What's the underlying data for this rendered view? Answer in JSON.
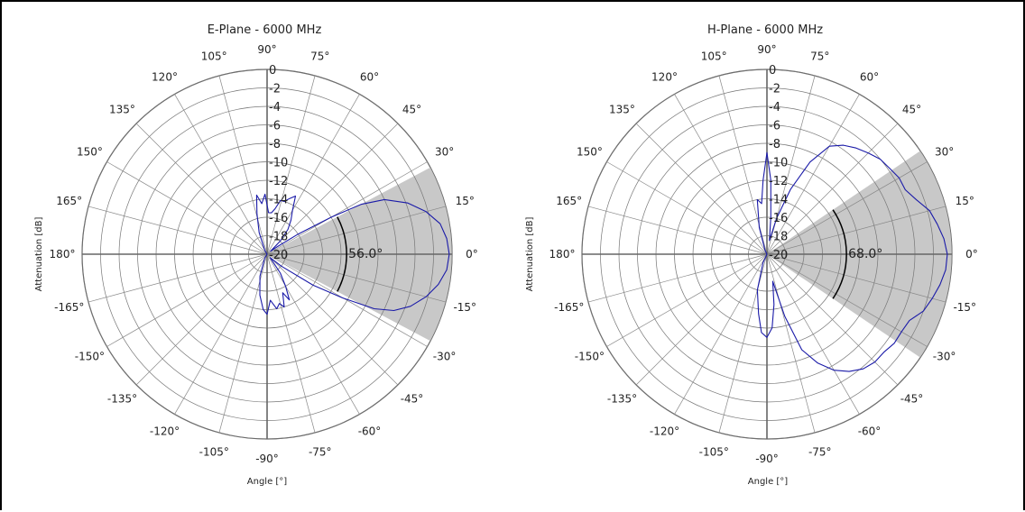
{
  "chart_data": [
    {
      "type": "polar",
      "title": "E-Plane - 6000 MHz",
      "xlabel": "Angle [°]",
      "ylabel": "Attenuation [dB]",
      "angle_ticks": [
        "0°",
        "15°",
        "30°",
        "45°",
        "60°",
        "75°",
        "90°",
        "105°",
        "120°",
        "135°",
        "150°",
        "165°",
        "180°",
        "-165°",
        "-150°",
        "-135°",
        "-120°",
        "-105°",
        "-90°",
        "-75°",
        "-60°",
        "-45°",
        "-30°",
        "-15°"
      ],
      "radial_ticks": [
        "0",
        "-2",
        "-4",
        "-6",
        "-8",
        "-10",
        "-12",
        "-14",
        "-16",
        "-18",
        "-20"
      ],
      "rlim": [
        -20,
        0
      ],
      "grid": true,
      "beamwidth": {
        "label": "56.0°",
        "value_deg": 56.0,
        "color": "#c8c8c8"
      },
      "series": [
        {
          "color": "#1a1aa8",
          "points": [
            [
              0,
              -0.3
            ],
            [
              5,
              -0.5
            ],
            [
              10,
              -1.0
            ],
            [
              15,
              -2.2
            ],
            [
              20,
              -3.8
            ],
            [
              25,
              -6.0
            ],
            [
              28,
              -8.5
            ],
            [
              30,
              -12.0
            ],
            [
              33,
              -16.0
            ],
            [
              36,
              -18.5
            ],
            [
              40,
              -19.5
            ],
            [
              45,
              -18.0
            ],
            [
              50,
              -16.5
            ],
            [
              55,
              -15.5
            ],
            [
              60,
              -14.5
            ],
            [
              64,
              -13.0
            ],
            [
              68,
              -13.5
            ],
            [
              72,
              -14.0
            ],
            [
              76,
              -14.0
            ],
            [
              80,
              -15.0
            ],
            [
              84,
              -15.5
            ],
            [
              88,
              -15.5
            ],
            [
              92,
              -13.5
            ],
            [
              96,
              -14.5
            ],
            [
              100,
              -13.5
            ],
            [
              104,
              -15.5
            ],
            [
              110,
              -17.5
            ],
            [
              120,
              -19.5
            ],
            [
              150,
              -20
            ],
            [
              180,
              -20
            ],
            [
              -150,
              -20
            ],
            [
              -120,
              -19.5
            ],
            [
              -108,
              -17.5
            ],
            [
              -100,
              -15.5
            ],
            [
              -94,
              -14.0
            ],
            [
              -90,
              -13.5
            ],
            [
              -86,
              -15.0
            ],
            [
              -80,
              -14.0
            ],
            [
              -76,
              -14.5
            ],
            [
              -72,
              -14.0
            ],
            [
              -68,
              -15.5
            ],
            [
              -64,
              -14.5
            ],
            [
              -60,
              -16.0
            ],
            [
              -55,
              -17.5
            ],
            [
              -48,
              -19.5
            ],
            [
              -40,
              -18.0
            ],
            [
              -34,
              -14.0
            ],
            [
              -30,
              -10.5
            ],
            [
              -27,
              -7.0
            ],
            [
              -24,
              -5.0
            ],
            [
              -20,
              -3.5
            ],
            [
              -15,
              -2.2
            ],
            [
              -10,
              -1.2
            ],
            [
              -5,
              -0.5
            ],
            [
              0,
              -0.3
            ]
          ]
        }
      ]
    },
    {
      "type": "polar",
      "title": "H-Plane - 6000 MHz",
      "xlabel": "Angle [°]",
      "ylabel": "Attenuation [dB]",
      "angle_ticks": [
        "0°",
        "15°",
        "30°",
        "45°",
        "60°",
        "75°",
        "90°",
        "105°",
        "120°",
        "135°",
        "150°",
        "165°",
        "180°",
        "-165°",
        "-150°",
        "-135°",
        "-120°",
        "-105°",
        "-90°",
        "-75°",
        "-60°",
        "-45°",
        "-30°",
        "-15°"
      ],
      "radial_ticks": [
        "0",
        "-2",
        "-4",
        "-6",
        "-8",
        "-10",
        "-12",
        "-14",
        "-16",
        "-18",
        "-20"
      ],
      "rlim": [
        -20,
        0
      ],
      "grid": true,
      "beamwidth": {
        "label": "68.0°",
        "value_deg": 68.0,
        "color": "#c8c8c8"
      },
      "series": [
        {
          "color": "#1a1aa8",
          "points": [
            [
              0,
              -0.5
            ],
            [
              5,
              -0.8
            ],
            [
              10,
              -1.3
            ],
            [
              15,
              -1.8
            ],
            [
              20,
              -2.8
            ],
            [
              25,
              -3.5
            ],
            [
              30,
              -3.5
            ],
            [
              35,
              -3.8
            ],
            [
              40,
              -4.0
            ],
            [
              45,
              -4.5
            ],
            [
              50,
              -5.0
            ],
            [
              55,
              -5.6
            ],
            [
              60,
              -6.5
            ],
            [
              65,
              -9.0
            ],
            [
              70,
              -12.5
            ],
            [
              75,
              -16.0
            ],
            [
              80,
              -18.5
            ],
            [
              84,
              -16.0
            ],
            [
              87,
              -12.0
            ],
            [
              90,
              -9.0
            ],
            [
              93,
              -12.0
            ],
            [
              96,
              -14.5
            ],
            [
              100,
              -14.0
            ],
            [
              106,
              -17.0
            ],
            [
              115,
              -19.5
            ],
            [
              150,
              -20
            ],
            [
              180,
              -20
            ],
            [
              -150,
              -20
            ],
            [
              -115,
              -19.0
            ],
            [
              -105,
              -16.0
            ],
            [
              -98,
              -13.5
            ],
            [
              -94,
              -11.5
            ],
            [
              -90,
              -11.0
            ],
            [
              -86,
              -12.0
            ],
            [
              -82,
              -14.5
            ],
            [
              -78,
              -17.0
            ],
            [
              -74,
              -13.0
            ],
            [
              -70,
              -9.0
            ],
            [
              -65,
              -7.0
            ],
            [
              -60,
              -5.5
            ],
            [
              -55,
              -4.5
            ],
            [
              -50,
              -3.8
            ],
            [
              -45,
              -3.5
            ],
            [
              -40,
              -3.5
            ],
            [
              -35,
              -3.2
            ],
            [
              -30,
              -3.2
            ],
            [
              -25,
              -3.0
            ],
            [
              -20,
              -2.0
            ],
            [
              -15,
              -1.5
            ],
            [
              -10,
              -1.0
            ],
            [
              -5,
              -0.6
            ],
            [
              0,
              -0.5
            ]
          ]
        }
      ]
    }
  ]
}
